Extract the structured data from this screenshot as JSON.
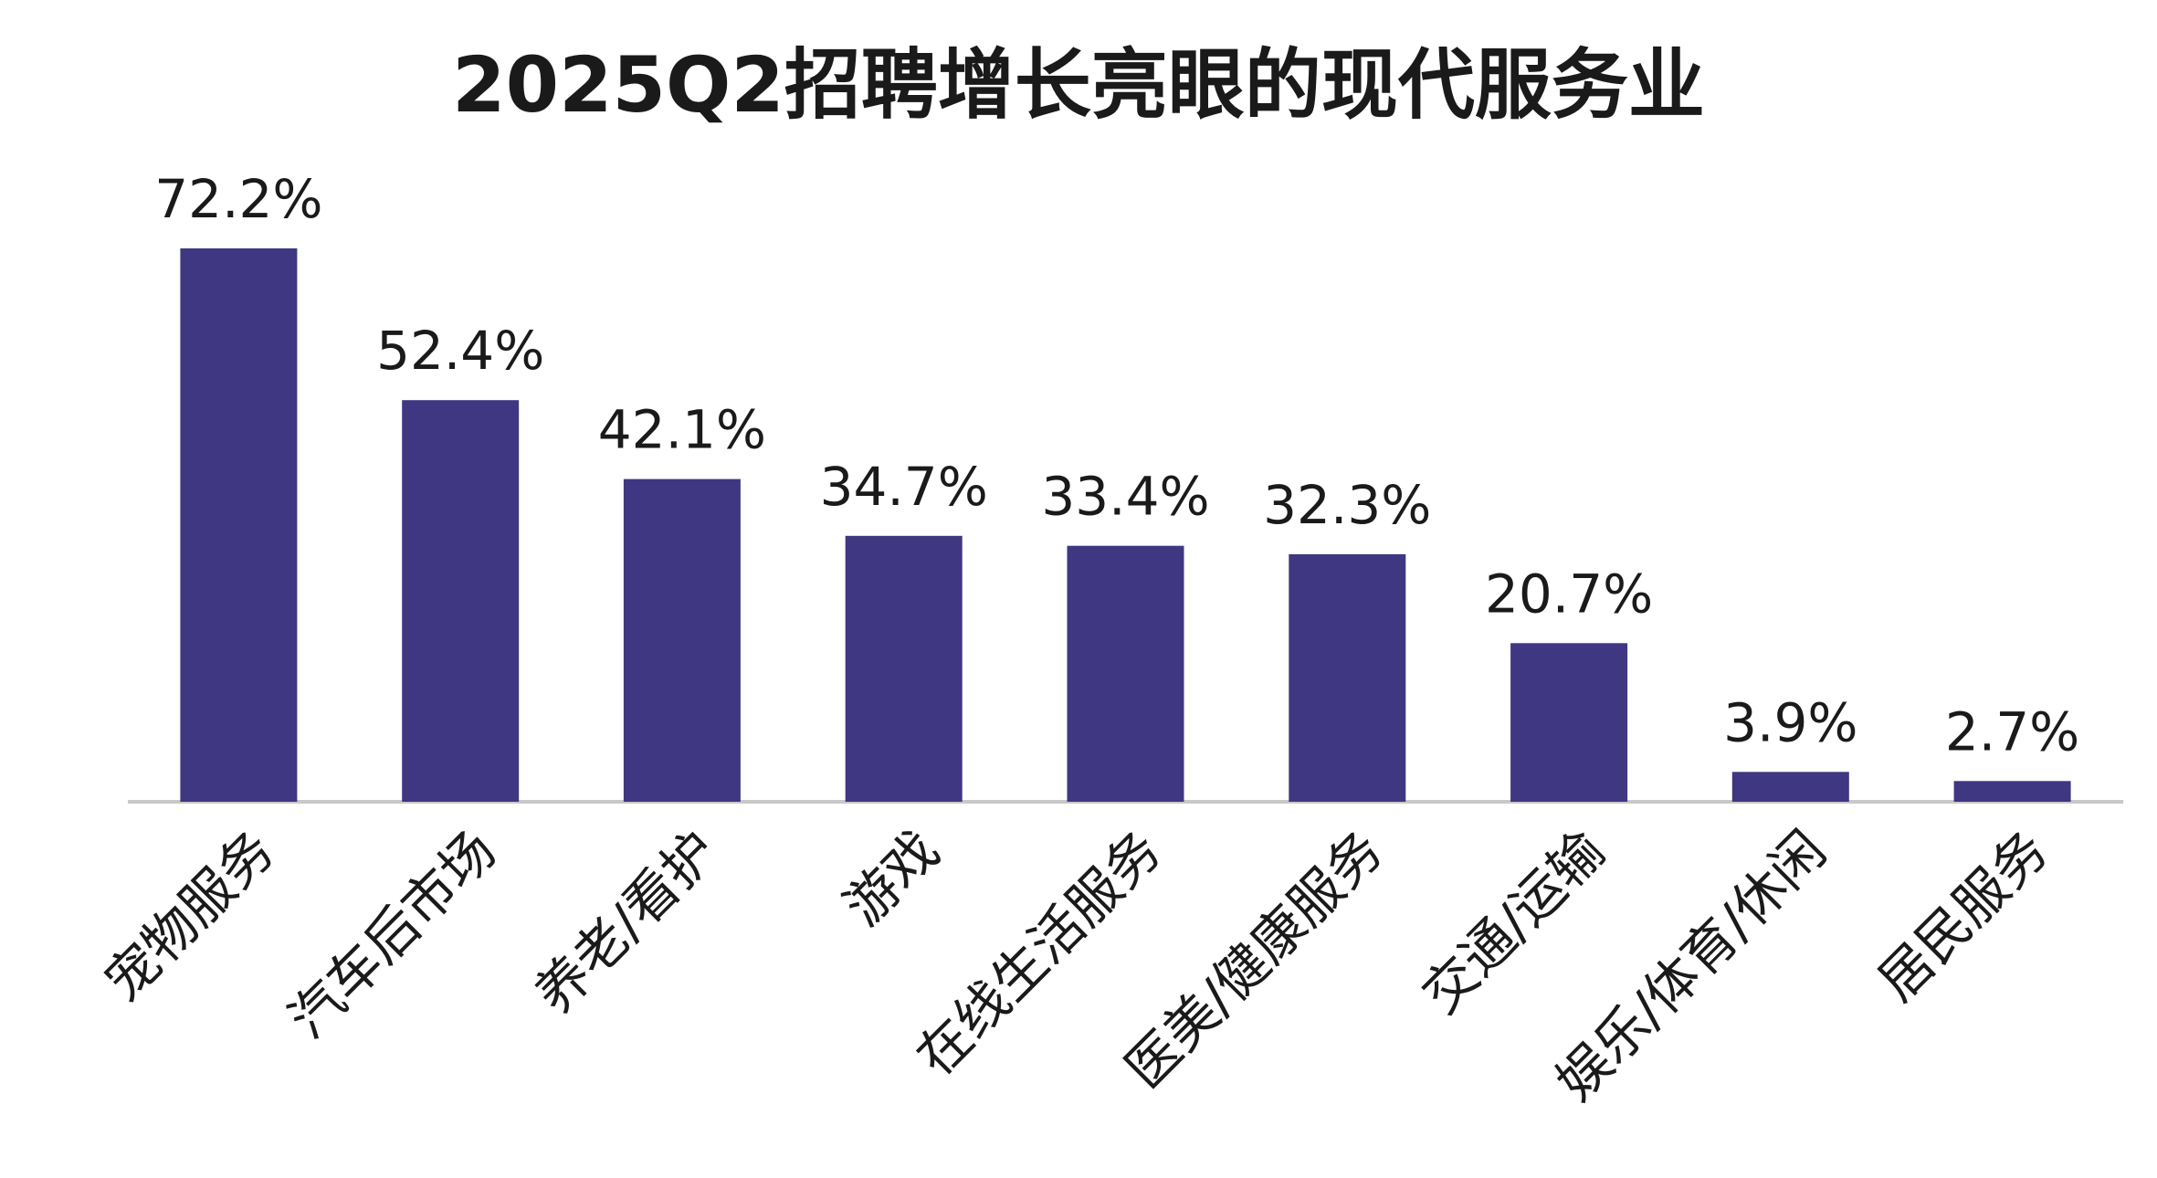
{
  "chart_data": {
    "type": "bar",
    "title": "2025Q2招聘增长亮眼的现代服务业",
    "xlabel": "",
    "ylabel": "",
    "ylim": [
      0,
      72.2
    ],
    "grid": false,
    "legend": "none",
    "categories": [
      "宠物服务",
      "汽车后市场",
      "养老/看护",
      "游戏",
      "在线生活服务",
      "医美/健康服务",
      "交通/运输",
      "娱乐/体育/休闲",
      "居民服务"
    ],
    "values": [
      72.2,
      52.4,
      42.1,
      34.7,
      33.4,
      32.3,
      20.7,
      3.9,
      2.7
    ],
    "labels": [
      "72.2%",
      "52.4%",
      "42.1%",
      "34.7%",
      "33.4%",
      "32.3%",
      "20.7%",
      "3.9%",
      "2.7%"
    ],
    "bar_color": "#3f3781",
    "axis_color": "#c8c8c8",
    "text_color": "#1a1a1a"
  }
}
